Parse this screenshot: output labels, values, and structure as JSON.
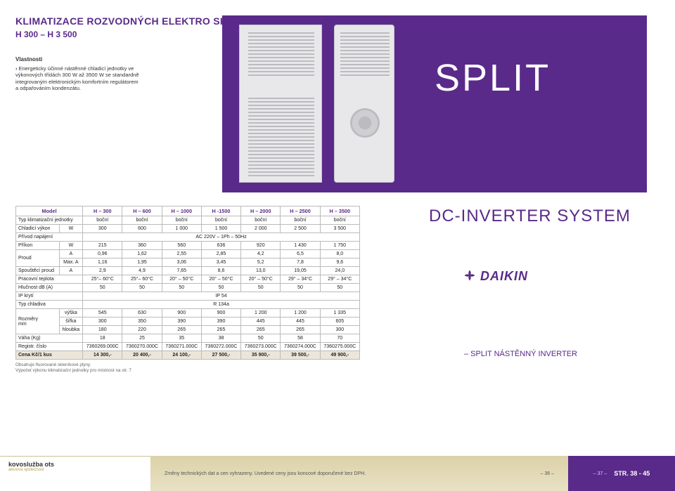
{
  "header": {
    "title": "KLIMATIZACE ROZVODNÝCH ELEKTRO SKŘÍNÍ",
    "subtitle": "H 300 – H 3 500"
  },
  "properties": {
    "heading": "Vlastnosti",
    "body": "Energeticky účinné nástěnné chladicí jednotky ve výkonových třídách 300 W až 3500 W se standardně integrovaným elektronickým komfortním regulátorem a odpařováním kondenzátu."
  },
  "split_label": "SPLIT",
  "dc_label": "DC-INVERTER SYSTEM",
  "split_sub": "– SPLIT NÁSTĚNNÝ INVERTER",
  "brand": "DAIKIN",
  "table": {
    "model_label": "Model",
    "cols": [
      "H – 300",
      "H – 600",
      "H – 1000",
      "H -1500",
      "H – 2000",
      "H – 2500",
      "H – 3500"
    ],
    "rows": [
      {
        "label": "Typ klimatizační jednotky",
        "unit": "",
        "vals": [
          "boční",
          "boční",
          "boční",
          "boční",
          "boční",
          "boční",
          "boční"
        ]
      },
      {
        "label": "Chladicí výkon",
        "unit": "W",
        "vals": [
          "300",
          "600",
          "1 000",
          "1 500",
          "2 000",
          "2 500",
          "3 500"
        ]
      },
      {
        "label": "Přívod napájení",
        "span": "AC 220V – 1Ph – 50Hz"
      },
      {
        "label": "Příkon",
        "unit": "W",
        "vals": [
          "215",
          "360",
          "560",
          "636",
          "920",
          "1 430",
          "1 750"
        ]
      },
      {
        "label": "Proud",
        "sub": "A",
        "unit": "A",
        "vals": [
          "0,96",
          "1,62",
          "2,55",
          "2,85",
          "4,2",
          "6,5",
          "8,0"
        ]
      },
      {
        "label": "",
        "sub": "Max. A",
        "unit": "Max. A",
        "vals": [
          "1,16",
          "1,95",
          "3,06",
          "3,45",
          "5,2",
          "7,8",
          "9,6"
        ]
      },
      {
        "label": "Spouštěcí proud",
        "unit": "A",
        "vals": [
          "2,9",
          "4,9",
          "7,65",
          "8,6",
          "13,0",
          "19,05",
          "24,0"
        ]
      },
      {
        "label": "Pracovní teplota",
        "unit": "",
        "vals": [
          "25°– 60°C",
          "25°– 60°C",
          "20° – 50°C",
          "20° – 50°C",
          "20° – 50°C",
          "29° – 34°C",
          "29° – 34°C"
        ]
      },
      {
        "label": "Hlučnost dB (A)",
        "unit": "",
        "vals": [
          "50",
          "50",
          "50",
          "50",
          "50",
          "50",
          "50"
        ]
      },
      {
        "label": "IP krytí",
        "span": "IP 54"
      },
      {
        "label": "Typ chladiva",
        "span": "R 134a"
      },
      {
        "label": "Rozměry mm",
        "sub": "výška",
        "unit": "výška",
        "vals": [
          "545",
          "630",
          "900",
          "900",
          "1 200",
          "1 200",
          "1 335"
        ]
      },
      {
        "label": "",
        "sub": "šířka",
        "unit": "šířka",
        "vals": [
          "300",
          "350",
          "390",
          "390",
          "445",
          "445",
          "605"
        ]
      },
      {
        "label": "",
        "sub": "hloubka",
        "unit": "hloubka",
        "vals": [
          "180",
          "220",
          "265",
          "265",
          "265",
          "265",
          "300"
        ]
      },
      {
        "label": "Váha (Kg)",
        "unit": "",
        "vals": [
          "18",
          "25",
          "35",
          "38",
          "50",
          "58",
          "70"
        ]
      },
      {
        "label": "Registr. číslo",
        "unit": "",
        "vals": [
          "7360269.000C",
          "7360270.000C",
          "7360271.000C",
          "7360272.000C",
          "7360273.000C",
          "7360274.000C",
          "7360275.000C"
        ]
      },
      {
        "label": "Cena Kč/1 kus",
        "unit": "",
        "vals": [
          "14 300,-",
          "20 400,-",
          "24 100,-",
          "27 500,-",
          "35 900,-",
          "39 500,-",
          "49 900,-"
        ],
        "price": true
      }
    ]
  },
  "notes": {
    "l1": "Obsahuje fluorované skleníkové plyny.",
    "l2": "Výpočet výkonu klimatizační jednotky pro místnost na str. 7"
  },
  "footer": {
    "logo": "kovoslužba ots",
    "logo_sub": "akciová společnost",
    "change_note": "Změny technických dat a cen vyhrazeny. Uvedené ceny jsou koncové doporučené bez DPH.",
    "page_left": "– 36 –",
    "page_right": "– 37 –",
    "str_label": "STR. 38 - 45"
  }
}
